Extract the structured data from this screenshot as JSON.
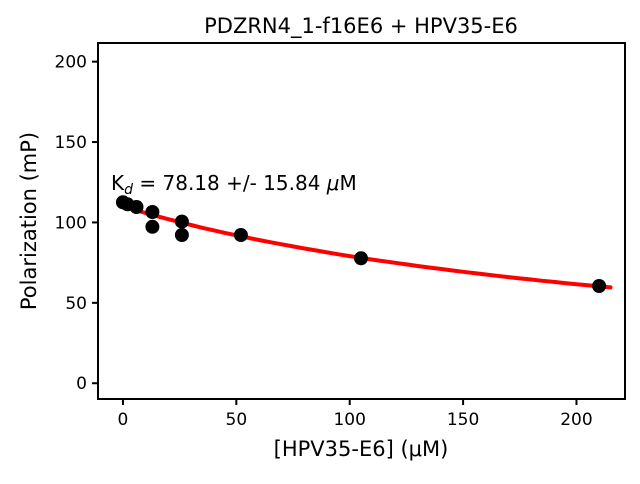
{
  "chart_data": {
    "type": "scatter",
    "title": "PDZRN4_1-f16E6 + HPV35-E6",
    "xlabel": "[HPV35-E6] (μM)",
    "ylabel": "Polarization (mP)",
    "xlim": [
      -11,
      221.4
    ],
    "ylim": [
      -9.8,
      211.6
    ],
    "xticks": [
      0,
      50,
      100,
      150,
      200
    ],
    "yticks": [
      0,
      50,
      100,
      150,
      200
    ],
    "grid": false,
    "legend": "none",
    "point_color": "#000000",
    "curve_color": "#ff0000",
    "annotation": {
      "k": "K",
      "sub": "d",
      "value": " = 78.18 +/- 15.84 ",
      "mu": "μ",
      "unit": "M"
    },
    "kd_value_uM": 78.18,
    "kd_error_uM": 15.84,
    "points": [
      [
        0,
        112.5
      ],
      [
        2,
        111.3
      ],
      [
        6,
        109.6
      ],
      [
        13,
        106.5
      ],
      [
        13,
        97.3
      ],
      [
        26,
        100.5
      ],
      [
        26,
        92.2
      ],
      [
        52,
        92.2
      ],
      [
        105,
        77.7
      ],
      [
        210,
        60.5
      ]
    ],
    "fit_curve": [
      [
        0,
        110.0
      ],
      [
        5,
        107.9
      ],
      [
        10,
        105.9
      ],
      [
        15,
        103.9
      ],
      [
        20,
        102.0
      ],
      [
        25,
        100.2
      ],
      [
        30,
        98.4
      ],
      [
        35,
        96.7
      ],
      [
        40,
        95.1
      ],
      [
        45,
        93.5
      ],
      [
        50,
        92.0
      ],
      [
        55,
        90.5
      ],
      [
        60,
        89.1
      ],
      [
        65,
        87.7
      ],
      [
        70,
        86.4
      ],
      [
        75,
        85.1
      ],
      [
        80,
        83.8
      ],
      [
        85,
        82.6
      ],
      [
        90,
        81.4
      ],
      [
        95,
        80.2
      ],
      [
        100,
        79.1
      ],
      [
        105,
        78.0
      ],
      [
        110,
        76.9
      ],
      [
        115,
        75.9
      ],
      [
        120,
        74.9
      ],
      [
        125,
        73.9
      ],
      [
        130,
        72.9
      ],
      [
        135,
        72.0
      ],
      [
        140,
        71.1
      ],
      [
        145,
        70.2
      ],
      [
        150,
        69.3
      ],
      [
        155,
        68.5
      ],
      [
        160,
        67.6
      ],
      [
        165,
        66.8
      ],
      [
        170,
        66.0
      ],
      [
        175,
        65.2
      ],
      [
        180,
        64.5
      ],
      [
        185,
        63.7
      ],
      [
        190,
        63.0
      ],
      [
        195,
        62.3
      ],
      [
        200,
        61.6
      ],
      [
        205,
        60.9
      ],
      [
        210,
        60.2
      ],
      [
        215,
        59.6
      ]
    ]
  }
}
